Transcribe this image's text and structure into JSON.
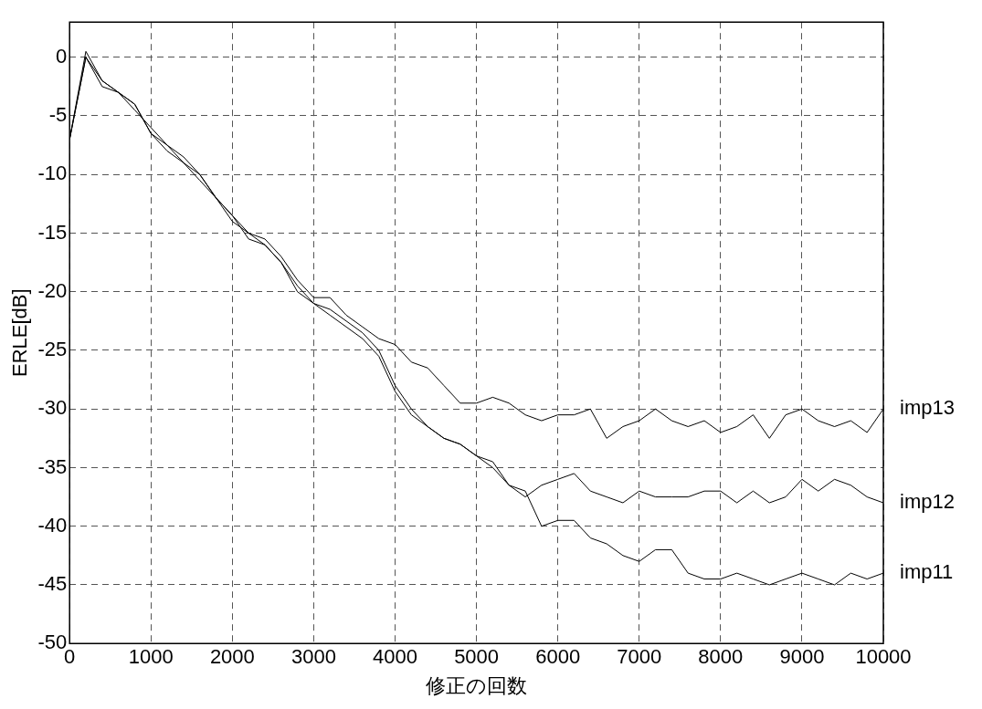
{
  "chart_data": {
    "type": "line",
    "xlabel": "修正の回数",
    "ylabel": "ERLE[dB]",
    "x": [
      0,
      200,
      400,
      600,
      800,
      1000,
      1200,
      1400,
      1600,
      1800,
      2000,
      2200,
      2400,
      2600,
      2800,
      3000,
      3200,
      3400,
      3600,
      3800,
      4000,
      4200,
      4400,
      4600,
      4800,
      5000,
      5200,
      5400,
      5600,
      5800,
      6000,
      6200,
      6400,
      6600,
      6800,
      7000,
      7200,
      7400,
      7600,
      7800,
      8000,
      8200,
      8400,
      8600,
      8800,
      9000,
      9200,
      9400,
      9600,
      9800,
      10000
    ],
    "series": [
      {
        "name": "imp13",
        "color": "#000000",
        "values": [
          -7,
          0,
          -2,
          -3,
          -4,
          -6.5,
          -7.5,
          -8.5,
          -10,
          -12,
          -13.5,
          -15,
          -15.5,
          -17,
          -19,
          -20.5,
          -20.5,
          -22,
          -23,
          -24,
          -24.5,
          -26,
          -26.5,
          -28,
          -29.5,
          -29.5,
          -29,
          -29.5,
          -30.5,
          -31,
          -30.5,
          -30.5,
          -30,
          -32.5,
          -31.5,
          -31,
          -30,
          -31,
          -31.5,
          -31,
          -32,
          -31.5,
          -30.5,
          -32.5,
          -30.5,
          -30,
          -31,
          -31.5,
          -31,
          -32,
          -30
        ]
      },
      {
        "name": "imp12",
        "color": "#000000",
        "values": [
          -7,
          0.5,
          -2,
          -3,
          -4,
          -6.5,
          -8,
          -9,
          -10,
          -12,
          -14,
          -15,
          -16,
          -17.5,
          -19.5,
          -21,
          -21.5,
          -22.5,
          -23.5,
          -25,
          -28,
          -30,
          -31.5,
          -32.5,
          -33,
          -34,
          -34.5,
          -36.5,
          -37.5,
          -36.5,
          -36,
          -35.5,
          -37,
          -37.5,
          -38,
          -37,
          -37.5,
          -37.5,
          -37.5,
          -37,
          -37,
          -38,
          -37,
          -38,
          -37.5,
          -36,
          -37,
          -36,
          -36.5,
          -37.5,
          -38
        ]
      },
      {
        "name": "imp11",
        "color": "#000000",
        "values": [
          -7,
          0,
          -2.5,
          -3,
          -4.5,
          -6,
          -7.5,
          -9,
          -10.5,
          -12,
          -13.5,
          -15.5,
          -16,
          -17.5,
          -20,
          -21,
          -22,
          -23,
          -24,
          -25.5,
          -28.5,
          -30.5,
          -31.5,
          -32.5,
          -33,
          -34,
          -35,
          -36.5,
          -37,
          -40,
          -39.5,
          -39.5,
          -41,
          -41.5,
          -42.5,
          -43,
          -42,
          -42,
          -44,
          -44.5,
          -44.5,
          -44,
          -44.5,
          -45,
          -44.5,
          -44,
          -44.5,
          -45,
          -44,
          -44.5,
          -44
        ]
      }
    ],
    "xlim": [
      0,
      10000
    ],
    "xticks": [
      0,
      1000,
      2000,
      3000,
      4000,
      5000,
      6000,
      7000,
      8000,
      9000,
      10000
    ],
    "ylim": [
      -50,
      3
    ],
    "yticks": [
      -50,
      -45,
      -40,
      -35,
      -30,
      -25,
      -20,
      -15,
      -10,
      -5,
      0
    ],
    "grid": true,
    "marker": "none",
    "line_style": "solid"
  }
}
